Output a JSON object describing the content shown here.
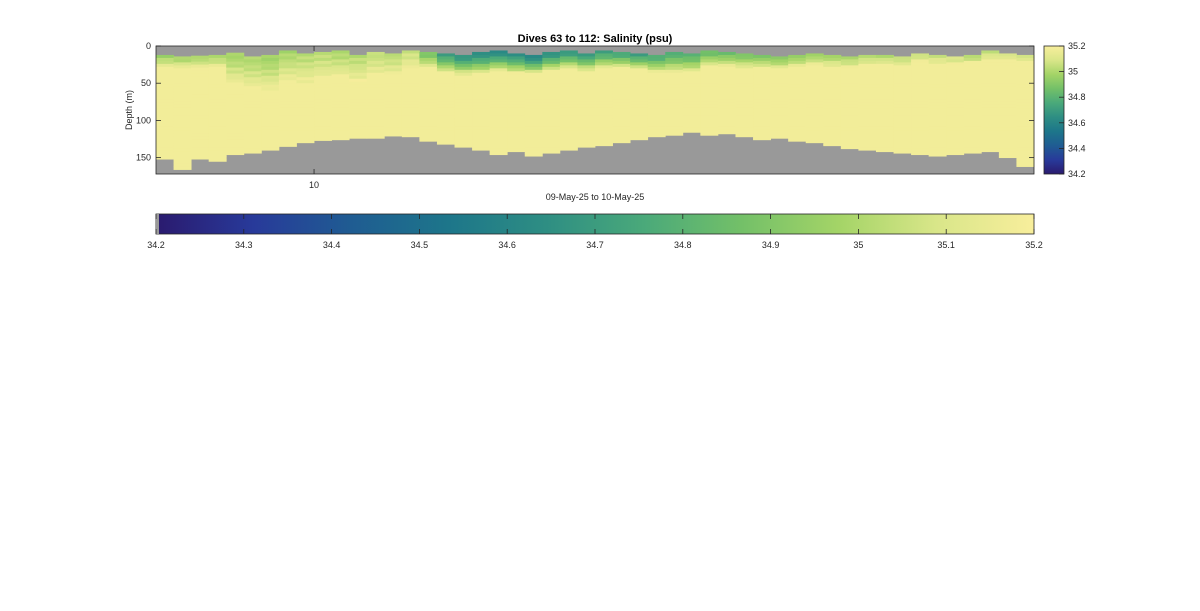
{
  "chart_data": {
    "type": "heatmap",
    "title": "Dives 63 to 112: Salinity (psu)",
    "xlabel": "09-May-25 to 10-May-25",
    "ylabel": "Depth (m)",
    "x_tick_labels": [
      "10"
    ],
    "x_tick_values": [
      9
    ],
    "y_ticks": [
      0,
      50,
      100,
      150
    ],
    "ylim": [
      0,
      172
    ],
    "dives": {
      "first": 63,
      "last": 112,
      "count": 50
    },
    "side_colorbar": {
      "ticks": [
        "35.2",
        "35",
        "34.8",
        "34.6",
        "34.4",
        "34.2"
      ],
      "values": [
        35.2,
        35.0,
        34.8,
        34.6,
        34.4,
        34.2
      ],
      "range": [
        34.2,
        35.2
      ]
    },
    "bottom_colorbar": {
      "ticks": [
        "34.2",
        "34.3",
        "34.4",
        "34.5",
        "34.6",
        "34.7",
        "34.8",
        "34.9",
        "35",
        "35.1",
        "35.2"
      ],
      "values": [
        34.2,
        34.3,
        34.4,
        34.5,
        34.6,
        34.7,
        34.8,
        34.9,
        35.0,
        35.1,
        35.2
      ],
      "range": [
        34.2,
        35.2
      ]
    },
    "colormap": [
      "#2a1a6e",
      "#283a9a",
      "#1f5c92",
      "#1d768a",
      "#2e8e83",
      "#4aa97a",
      "#73c068",
      "#a4d467",
      "#d9e689",
      "#f8ee9c"
    ],
    "nodata_color": "#999999",
    "surface_start_depth": [
      12,
      14,
      13,
      12,
      9,
      14,
      12,
      6,
      10,
      8,
      6,
      12,
      8,
      10,
      6,
      8,
      10,
      12,
      8,
      6,
      10,
      12,
      8,
      6,
      10,
      6,
      8,
      10,
      12,
      8,
      10,
      6,
      8,
      10,
      12,
      14,
      12,
      10,
      12,
      14,
      12,
      12,
      14,
      10,
      12,
      14,
      12,
      6,
      10,
      12
    ],
    "bottom_max_depth": [
      152,
      166,
      152,
      155,
      146,
      144,
      140,
      135,
      130,
      127,
      126,
      124,
      124,
      121,
      122,
      128,
      132,
      136,
      140,
      146,
      142,
      148,
      144,
      140,
      136,
      134,
      130,
      126,
      122,
      120,
      116,
      120,
      118,
      122,
      126,
      124,
      128,
      130,
      134,
      138,
      140,
      142,
      144,
      146,
      148,
      146,
      144,
      142,
      150,
      162
    ],
    "freshest_salinity_per_dive": [
      34.97,
      34.98,
      34.99,
      35.0,
      34.98,
      35.0,
      34.97,
      34.99,
      35.02,
      35.03,
      35.0,
      35.02,
      35.04,
      35.03,
      35.06,
      34.88,
      34.72,
      34.66,
      34.64,
      34.62,
      34.66,
      34.6,
      34.65,
      34.68,
      34.7,
      34.72,
      34.74,
      34.72,
      34.76,
      34.78,
      34.8,
      34.84,
      34.86,
      34.88,
      34.9,
      34.92,
      34.94,
      34.96,
      34.98,
      35.0,
      35.02,
      35.02,
      35.04,
      35.06,
      35.06,
      35.08,
      35.0,
      35.04,
      35.08,
      35.08
    ],
    "fresh_layer_thickness_m": [
      15,
      14,
      15,
      16,
      40,
      42,
      45,
      40,
      38,
      36,
      35,
      34,
      30,
      28,
      22,
      20,
      24,
      25,
      28,
      26,
      25,
      24,
      24,
      23,
      22,
      22,
      20,
      20,
      22,
      26,
      24,
      20,
      18,
      18,
      16,
      16,
      15,
      14,
      14,
      14,
      12,
      12,
      12,
      10,
      10,
      10,
      8,
      10,
      8,
      8
    ],
    "deep_salinity": 35.18
  }
}
